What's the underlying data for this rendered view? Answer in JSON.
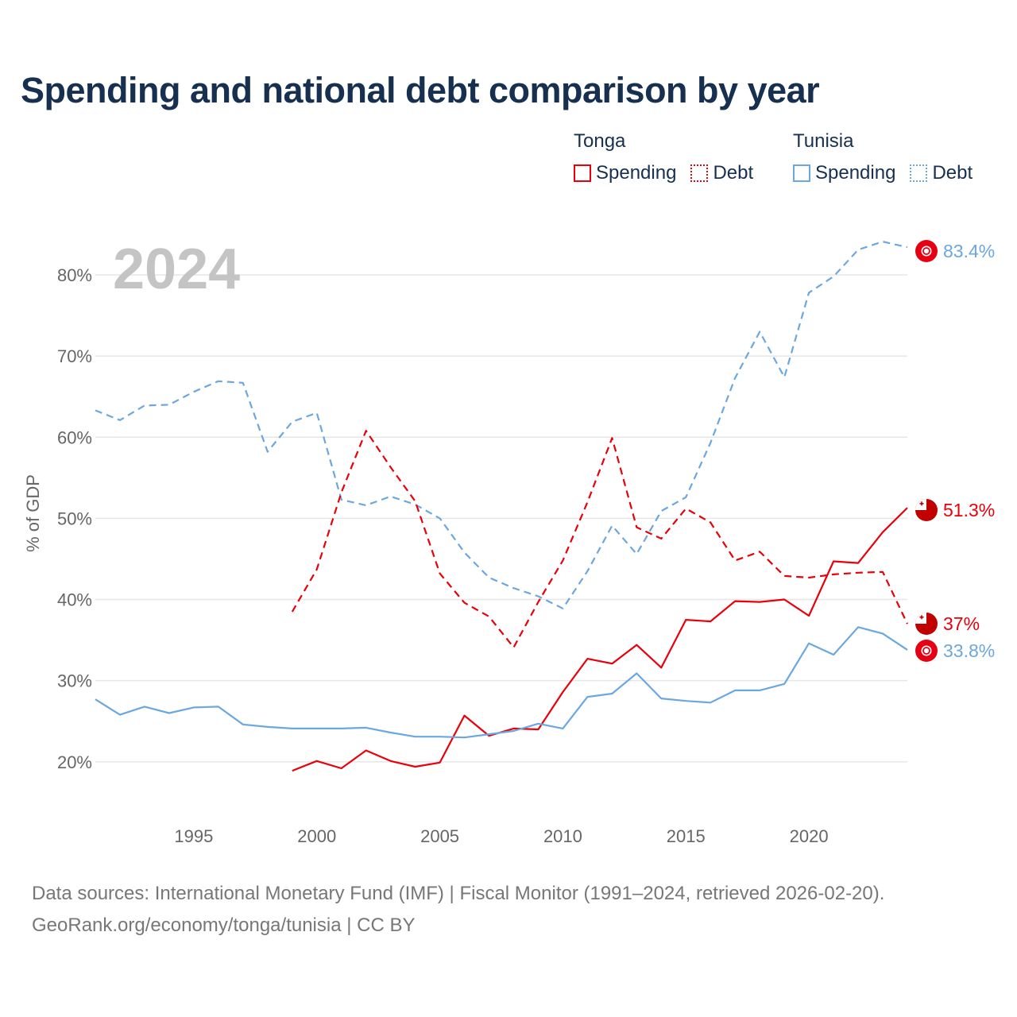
{
  "title": "Spending and national debt comparison by year",
  "legend": {
    "groups": [
      {
        "country": "Tonga",
        "spending": "Spending",
        "debt": "Debt"
      },
      {
        "country": "Tunisia",
        "spending": "Spending",
        "debt": "Debt"
      }
    ]
  },
  "footer": {
    "line1": "Data sources: International Monetary Fund (IMF) | Fiscal Monitor (1991–2024, retrieved 2026-02-20).",
    "line2": "GeoRank.org/economy/tonga/tunisia | CC BY"
  },
  "colors": {
    "tonga": "#e8000b",
    "tunisia": "#6ba7e0",
    "grid": "#e6e6e6",
    "axis_text": "#666666",
    "year_watermark": "#c4c4c4"
  },
  "chart_data": {
    "type": "line",
    "year_label": "2024",
    "ylabel": "% of GDP",
    "xlim": [
      1991,
      2024
    ],
    "ylim": [
      14.5,
      84.5
    ],
    "x_ticks": [
      1995,
      2000,
      2005,
      2010,
      2015,
      2020
    ],
    "y_ticks": [
      20,
      30,
      40,
      50,
      60,
      70,
      80
    ],
    "y_tick_labels": [
      "20%",
      "30%",
      "40%",
      "50%",
      "60%",
      "70%",
      "80%"
    ],
    "series": [
      {
        "name": "Tunisia Debt",
        "country": "Tunisia",
        "metric": "Debt",
        "style": "dashed",
        "color": "#6ba7e0",
        "end_label": "83.4%",
        "x": [
          1991,
          1992,
          1993,
          1994,
          1995,
          1996,
          1997,
          1998,
          1999,
          2000,
          2001,
          2002,
          2003,
          2004,
          2005,
          2006,
          2007,
          2008,
          2009,
          2010,
          2011,
          2012,
          2013,
          2014,
          2015,
          2016,
          2017,
          2018,
          2019,
          2020,
          2021,
          2022,
          2023,
          2024
        ],
        "values": [
          63.3,
          62.1,
          63.9,
          64.0,
          65.6,
          66.9,
          66.7,
          58.2,
          61.9,
          63.0,
          52.3,
          51.6,
          52.7,
          51.7,
          50.0,
          45.8,
          42.7,
          41.4,
          40.4,
          38.9,
          43.5,
          49.1,
          45.6,
          50.9,
          52.6,
          59.3,
          67.3,
          73.0,
          67.4,
          77.8,
          79.8,
          83.1,
          84.1,
          83.4
        ]
      },
      {
        "name": "Tonga Debt",
        "country": "Tonga",
        "metric": "Debt",
        "style": "dashed",
        "color": "#e8000b",
        "end_label": "37%",
        "x": [
          1999,
          2000,
          2001,
          2002,
          2003,
          2004,
          2005,
          2006,
          2007,
          2008,
          2009,
          2010,
          2011,
          2012,
          2013,
          2014,
          2015,
          2016,
          2017,
          2018,
          2019,
          2020,
          2021,
          2022,
          2023,
          2024
        ],
        "values": [
          38.5,
          43.7,
          53.2,
          60.8,
          56.3,
          52.1,
          43.2,
          39.6,
          37.9,
          34.1,
          39.7,
          44.8,
          52.0,
          59.9,
          48.9,
          47.5,
          51.2,
          49.5,
          44.8,
          45.9,
          42.9,
          42.7,
          43.1,
          43.3,
          43.4,
          37.0
        ]
      },
      {
        "name": "Tonga Spending",
        "country": "Tonga",
        "metric": "Spending",
        "style": "solid",
        "color": "#e8000b",
        "end_label": "51.3%",
        "x": [
          1999,
          2000,
          2001,
          2002,
          2003,
          2004,
          2005,
          2006,
          2007,
          2008,
          2009,
          2010,
          2011,
          2012,
          2013,
          2014,
          2015,
          2016,
          2017,
          2018,
          2019,
          2020,
          2021,
          2022,
          2023,
          2024
        ],
        "values": [
          18.9,
          20.1,
          19.2,
          21.4,
          20.1,
          19.4,
          19.9,
          25.7,
          23.2,
          24.1,
          24.0,
          28.6,
          32.7,
          32.1,
          34.4,
          31.6,
          37.5,
          37.3,
          39.8,
          39.7,
          40.0,
          38.0,
          44.7,
          44.5,
          48.3,
          51.3
        ]
      },
      {
        "name": "Tunisia Spending",
        "country": "Tunisia",
        "metric": "Spending",
        "style": "solid",
        "color": "#6ba7e0",
        "end_label": "33.8%",
        "x": [
          1991,
          1992,
          1993,
          1994,
          1995,
          1996,
          1997,
          1998,
          1999,
          2000,
          2001,
          2002,
          2003,
          2004,
          2005,
          2006,
          2007,
          2008,
          2009,
          2010,
          2011,
          2012,
          2013,
          2014,
          2015,
          2016,
          2017,
          2018,
          2019,
          2020,
          2021,
          2022,
          2023,
          2024
        ],
        "values": [
          27.7,
          25.8,
          26.8,
          26.0,
          26.7,
          26.8,
          24.6,
          24.3,
          24.1,
          24.1,
          24.1,
          24.2,
          23.6,
          23.1,
          23.1,
          23.0,
          23.4,
          23.8,
          24.7,
          24.1,
          28.0,
          28.4,
          30.9,
          27.8,
          27.5,
          27.3,
          28.8,
          28.8,
          29.6,
          34.6,
          33.2,
          36.6,
          35.8,
          33.8
        ]
      }
    ]
  }
}
